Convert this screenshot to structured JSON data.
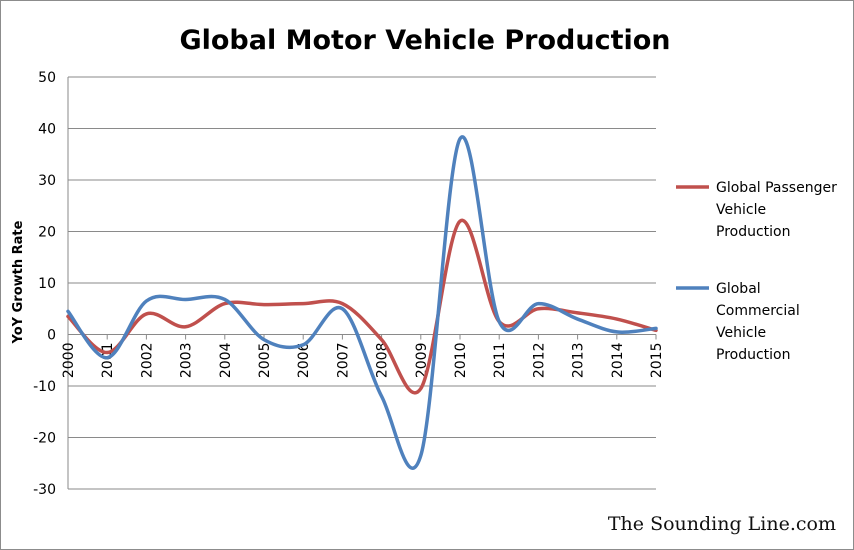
{
  "chart_data": {
    "type": "line",
    "title": "Global Motor Vehicle Production",
    "xlabel": "",
    "ylabel": "YoY Growth Rate",
    "x": [
      "2000",
      "2001",
      "2002",
      "2003",
      "2004",
      "2005",
      "2006",
      "2007",
      "2008",
      "2009",
      "2010",
      "2011",
      "2012",
      "2013",
      "2014",
      "2015"
    ],
    "ylim": [
      -30,
      50
    ],
    "yticks": [
      50,
      40,
      30,
      20,
      10,
      0,
      -10,
      -20,
      -30
    ],
    "grid": true,
    "legend_position": "right",
    "series": [
      {
        "name": "Global Passenger Vehicle Production",
        "legend_lines": [
          "Global Passenger",
          "Vehicle",
          "Production"
        ],
        "color": "#C0504D",
        "values": [
          3.5,
          -3.5,
          4,
          1.5,
          6,
          5.8,
          6,
          6,
          -1,
          -10.5,
          22,
          2.5,
          5,
          4.2,
          3,
          0.8
        ]
      },
      {
        "name": "Global Commercial Vehicle Production",
        "legend_lines": [
          "Global",
          "Commercial",
          "Vehicle",
          "Production"
        ],
        "color": "#4F81BD",
        "values": [
          4.5,
          -4.5,
          6.5,
          6.8,
          6.8,
          -1,
          -2,
          5,
          -12,
          -23.5,
          38,
          2.5,
          6,
          3,
          0.5,
          1.2
        ]
      }
    ]
  },
  "watermark": "The Sounding Line.com"
}
